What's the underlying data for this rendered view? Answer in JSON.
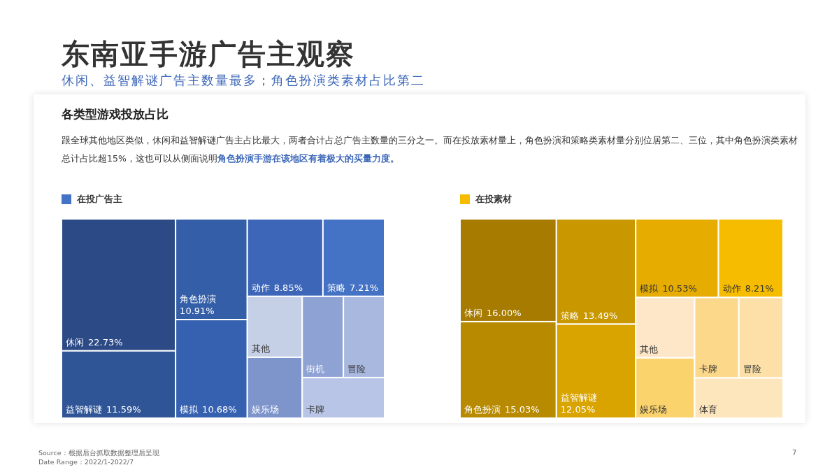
{
  "chart_data": [
    {
      "type": "other",
      "title": "东南亚手游广告主观察",
      "subtitle": "休闲、益智解谜广告主数量最多；角色扮演类素材占比第二",
      "annotations": [
        "各类型游戏投放占比",
        "跟全球其他地区类似，休闲和益智解谜广告主占比最大，两者合计占总广告主数量的三分之一。而在投放素材量上，角色扮演和策略类素材量分别位居第二、三位，其中角色扮演类素材总计占比超15%，这也可以从侧面说明",
        "角色扮演手游在该地区有着极大的买量力度。",
        "Source：根据后台抓取数据整理后呈现",
        "Date Range：2022/1-2022/7",
        "7"
      ]
    },
    {
      "type": "other",
      "categories": [
        "休闲",
        "益智解谜",
        "角色扮演",
        "模拟",
        "动作",
        "策略",
        "其他",
        "娱乐场",
        "街机",
        "冒险",
        "卡牌"
      ],
      "series": [
        {
          "name": "在投广告主",
          "values": [
            22.73,
            11.59,
            10.91,
            10.68,
            8.85,
            7.21,
            null,
            null,
            null,
            null,
            null
          ],
          "value_labels": [
            "22.73%",
            "11.59%",
            "10.91%",
            "10.68%",
            "8.85%",
            "7.21%",
            null,
            null,
            null,
            null,
            null
          ]
        }
      ],
      "colors": [
        "#2c4a86",
        "#2f5597",
        "#345ea8",
        "#3561b0",
        "#3d66b8",
        "#4472c4",
        "#c5cfe6",
        "#7e95cc",
        "#8ea3d4",
        "#a8b8df",
        "#b8c5e6"
      ]
    },
    {
      "type": "other",
      "categories": [
        "休闲",
        "角色扮演",
        "策略",
        "益智解谜",
        "模拟",
        "动作",
        "其他",
        "娱乐场",
        "卡牌",
        "冒险",
        "体育"
      ],
      "series": [
        {
          "name": "在投素材",
          "values": [
            16.0,
            15.03,
            13.49,
            12.05,
            10.53,
            8.21,
            null,
            null,
            null,
            null,
            null
          ],
          "value_labels": [
            "16.00%",
            "15.03%",
            "13.49%",
            "12.05%",
            "10.53%",
            "8.21%",
            null,
            null,
            null,
            null,
            null
          ]
        }
      ],
      "colors": [
        "#a67b00",
        "#b88a00",
        "#c99700",
        "#d9a300",
        "#e6ad00",
        "#f5bc00",
        "#fde7c8",
        "#fbd36d",
        "#fcd88a",
        "#fde0a8",
        "#fde6bc"
      ]
    }
  ]
}
